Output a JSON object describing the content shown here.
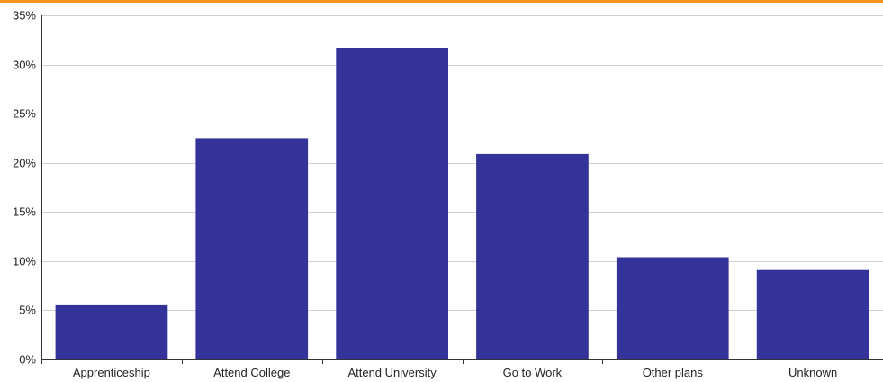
{
  "colors": {
    "bar": "#333399",
    "top_rule": "#f7941d",
    "grid": "#d0d0d0",
    "axis": "#333333"
  },
  "chart_data": {
    "type": "bar",
    "title": "",
    "xlabel": "",
    "ylabel": "",
    "categories": [
      "Apprenticeship",
      "Attend College",
      "Attend University",
      "Go to Work",
      "Other plans",
      "Unknown"
    ],
    "values": [
      5.6,
      22.5,
      31.7,
      20.9,
      10.4,
      9.1
    ],
    "unit": "%",
    "ylim": [
      0,
      35
    ],
    "yticks": [
      0,
      5,
      10,
      15,
      20,
      25,
      30,
      35
    ],
    "ytick_labels": [
      "0%",
      "5%",
      "10%",
      "15%",
      "20%",
      "25%",
      "30%",
      "35%"
    ],
    "grid": true,
    "legend": "none"
  }
}
